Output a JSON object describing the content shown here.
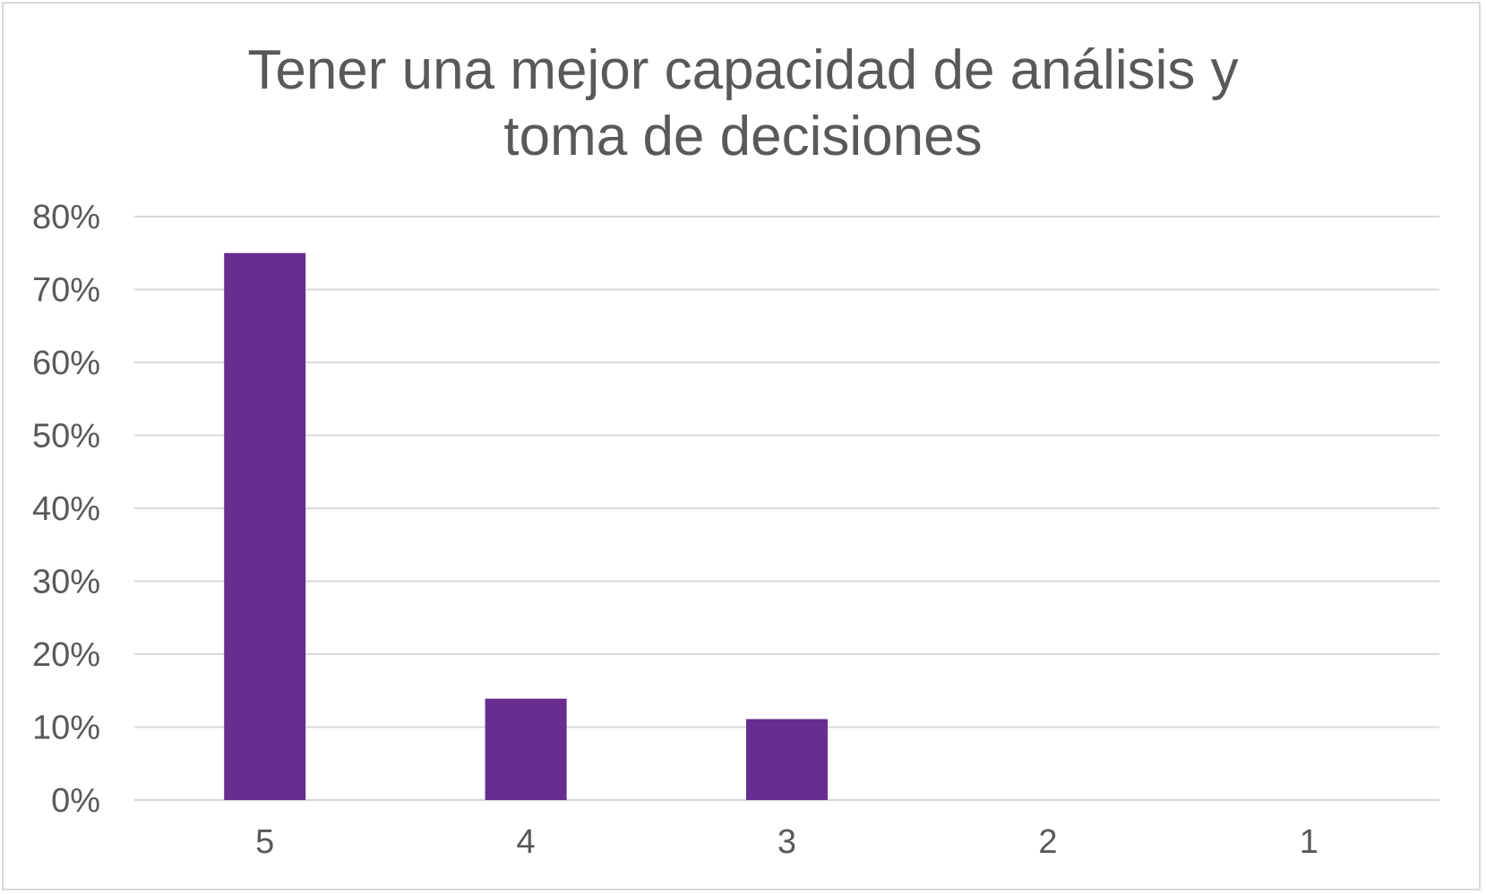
{
  "chart_data": {
    "type": "bar",
    "title_lines": [
      "Tener una mejor capacidad de análisis y",
      "toma de decisiones"
    ],
    "categories": [
      "5",
      "4",
      "3",
      "2",
      "1"
    ],
    "values": [
      0.75,
      0.139,
      0.111,
      0,
      0
    ],
    "yticks": [
      "0%",
      "10%",
      "20%",
      "30%",
      "40%",
      "50%",
      "60%",
      "70%",
      "80%"
    ],
    "ylim": [
      0,
      0.8
    ],
    "grid": true,
    "legend": "none",
    "bar_color": "#672D8F",
    "grid_color": "#d9d9d9",
    "text_color": "#595959"
  }
}
